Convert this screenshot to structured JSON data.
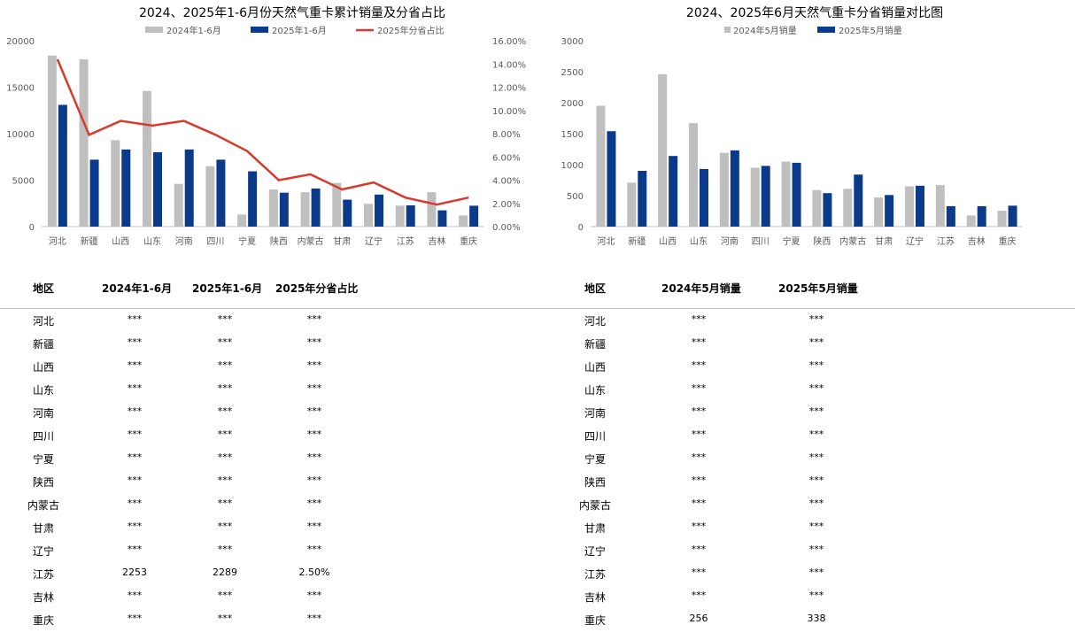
{
  "chart_data": [
    {
      "type": "bar",
      "title": "2024、2025年1-6月份天然气重卡累计销量及分省占比",
      "categories": [
        "河北",
        "新疆",
        "山西",
        "山东",
        "河南",
        "四川",
        "宁夏",
        "陕西",
        "内蒙古",
        "甘肃",
        "辽宁",
        "江苏",
        "吉林",
        "重庆"
      ],
      "series": [
        {
          "name": "2024年1-6月",
          "color": "#bfbfbf",
          "axis": "left",
          "values": [
            18400,
            18000,
            9300,
            14600,
            4600,
            6500,
            1300,
            4000,
            3700,
            4700,
            2450,
            2253,
            3700,
            1200
          ]
        },
        {
          "name": "2025年1-6月",
          "color": "#0b3a8a",
          "axis": "left",
          "values": [
            13100,
            7200,
            8300,
            8000,
            8300,
            7200,
            5950,
            3650,
            4100,
            2900,
            3450,
            2289,
            1750,
            2250
          ]
        },
        {
          "name": "2025年分省占比",
          "color": "#d83a2e",
          "type": "line",
          "axis": "right",
          "values": [
            14.4,
            7.9,
            9.1,
            8.7,
            9.1,
            7.9,
            6.5,
            4.0,
            4.5,
            3.2,
            3.8,
            2.5,
            1.9,
            2.5
          ]
        }
      ],
      "ylim": [
        0,
        20000
      ],
      "yticks": [
        "0",
        "5000",
        "10000",
        "15000",
        "20000"
      ],
      "y2lim": [
        0,
        16
      ],
      "y2ticks": [
        "0.00%",
        "2.00%",
        "4.00%",
        "6.00%",
        "8.00%",
        "10.00%",
        "12.00%",
        "14.00%",
        "16.00%"
      ],
      "legend": "top"
    },
    {
      "type": "bar",
      "title": "2024、2025年6月天然气重卡分省销量对比图",
      "categories": [
        "河北",
        "新疆",
        "山西",
        "山东",
        "河南",
        "四川",
        "宁夏",
        "陕西",
        "内蒙古",
        "甘肃",
        "辽宁",
        "江苏",
        "吉林",
        "重庆"
      ],
      "series": [
        {
          "name": "2024年5月销量",
          "color": "#bfbfbf",
          "values": [
            1950,
            710,
            2460,
            1670,
            1190,
            950,
            1050,
            590,
            610,
            470,
            650,
            670,
            180,
            256
          ]
        },
        {
          "name": "2025年5月销量",
          "color": "#0b3a8a",
          "values": [
            1540,
            900,
            1140,
            930,
            1230,
            980,
            1030,
            540,
            840,
            510,
            660,
            330,
            330,
            338
          ]
        }
      ],
      "ylim": [
        0,
        3000
      ],
      "yticks": [
        "0",
        "500",
        "1000",
        "1500",
        "2000",
        "2500",
        "3000"
      ],
      "legend": "top"
    }
  ],
  "left_table": {
    "headers": [
      "地区",
      "2024年1-6月",
      "2025年1-6月",
      "2025年分省占比"
    ],
    "rows": [
      [
        "河北",
        "***",
        "***",
        "***"
      ],
      [
        "新疆",
        "***",
        "***",
        "***"
      ],
      [
        "山西",
        "***",
        "***",
        "***"
      ],
      [
        "山东",
        "***",
        "***",
        "***"
      ],
      [
        "河南",
        "***",
        "***",
        "***"
      ],
      [
        "四川",
        "***",
        "***",
        "***"
      ],
      [
        "宁夏",
        "***",
        "***",
        "***"
      ],
      [
        "陕西",
        "***",
        "***",
        "***"
      ],
      [
        "内蒙古",
        "***",
        "***",
        "***"
      ],
      [
        "甘肃",
        "***",
        "***",
        "***"
      ],
      [
        "辽宁",
        "***",
        "***",
        "***"
      ],
      [
        "江苏",
        "2253",
        "2289",
        "2.50%"
      ],
      [
        "吉林",
        "***",
        "***",
        "***"
      ],
      [
        "重庆",
        "***",
        "***",
        "***"
      ]
    ]
  },
  "right_table": {
    "headers": [
      "地区",
      "2024年5月销量",
      "2025年5月销量"
    ],
    "rows": [
      [
        "河北",
        "***",
        "***"
      ],
      [
        "新疆",
        "***",
        "***"
      ],
      [
        "山西",
        "***",
        "***"
      ],
      [
        "山东",
        "***",
        "***"
      ],
      [
        "河南",
        "***",
        "***"
      ],
      [
        "四川",
        "***",
        "***"
      ],
      [
        "宁夏",
        "***",
        "***"
      ],
      [
        "陕西",
        "***",
        "***"
      ],
      [
        "内蒙古",
        "***",
        "***"
      ],
      [
        "甘肃",
        "***",
        "***"
      ],
      [
        "辽宁",
        "***",
        "***"
      ],
      [
        "江苏",
        "***",
        "***"
      ],
      [
        "吉林",
        "***",
        "***"
      ],
      [
        "重庆",
        "256",
        "338"
      ]
    ]
  }
}
